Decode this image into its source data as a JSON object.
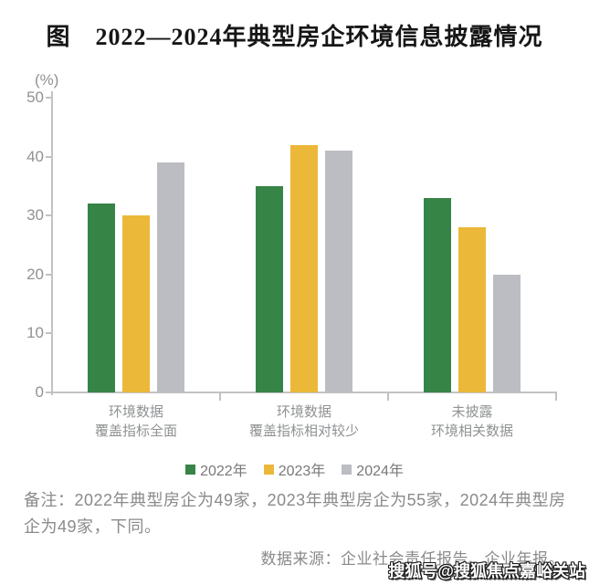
{
  "chart_data": {
    "type": "bar",
    "title": "图　2022—2024年典型房企环境信息披露情况",
    "unit_label": "(%)",
    "categories": [
      [
        "环境数据",
        "覆盖指标全面"
      ],
      [
        "环境数据",
        "覆盖指标相对较少"
      ],
      [
        "未披露",
        "环境相关数据"
      ]
    ],
    "series": [
      {
        "name": "2022年",
        "color": "#378447",
        "values": [
          32,
          35,
          33
        ]
      },
      {
        "name": "2023年",
        "color": "#ecb839",
        "values": [
          30,
          42,
          28
        ]
      },
      {
        "name": "2024年",
        "color": "#bbbdc2",
        "values": [
          39,
          41,
          20
        ]
      }
    ],
    "ylim": [
      0,
      50
    ],
    "yticks": [
      0,
      10,
      20,
      30,
      40,
      50
    ],
    "ylabel": "",
    "xlabel": "",
    "grid": false,
    "legend_position": "bottom",
    "axis_color": "#c2c2c5",
    "tick_label_color": "#8f9193"
  },
  "footer": {
    "remark": "备注：2022年典型房企为49家，2023年典型房企为55家，2024年典型房企为49家，下同。",
    "source": "数据来源：企业社会责任报告、企业年报。",
    "watermark": "搜狐号@搜狐焦点嘉峪关站"
  }
}
